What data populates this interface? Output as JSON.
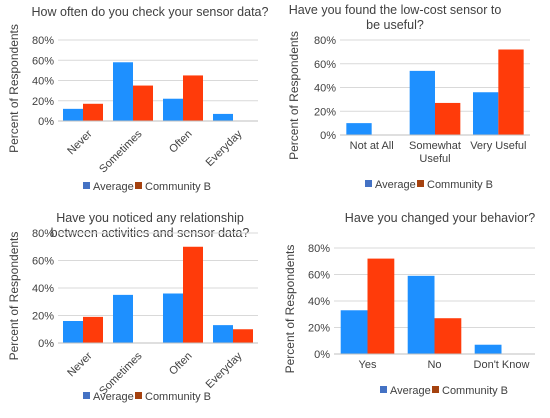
{
  "colors": {
    "average": "#1e90ff",
    "community_b": "#ff3b0a",
    "average_legend": "#4472c4",
    "community_b_legend": "#a5420f",
    "gridline": "#d9d9d9",
    "text": "#404040"
  },
  "chart_data": [
    {
      "type": "bar",
      "title": "How often do you check your sensor data?",
      "ylabel": "Percent of Respondents",
      "xlabel": "",
      "ylim": [
        0,
        80
      ],
      "yticks": [
        "0%",
        "20%",
        "40%",
        "60%",
        "80%"
      ],
      "grid": true,
      "categories": [
        "Never",
        "Sometimes",
        "Often",
        "Everyday"
      ],
      "series": [
        {
          "name": "Average",
          "values": [
            12,
            58,
            22,
            7
          ]
        },
        {
          "name": "Community B",
          "values": [
            17,
            35,
            45,
            0
          ]
        }
      ],
      "legend": "bottom"
    },
    {
      "type": "bar",
      "title": "Have you found the low-cost sensor to be useful?",
      "ylabel": "Percent of Respondents",
      "xlabel": "",
      "ylim": [
        0,
        80
      ],
      "yticks": [
        "0%",
        "20%",
        "40%",
        "60%",
        "80%"
      ],
      "grid": true,
      "categories": [
        "Not at All",
        "Somewhat Useful",
        "Very Useful"
      ],
      "series": [
        {
          "name": "Average",
          "values": [
            10,
            54,
            36
          ]
        },
        {
          "name": "Community B",
          "values": [
            0,
            27,
            72
          ]
        }
      ],
      "legend": "bottom"
    },
    {
      "type": "bar",
      "title": "Have you noticed any relationship between activities and sensor data?",
      "ylabel": "Percent of Respondents",
      "xlabel": "",
      "ylim": [
        0,
        80
      ],
      "yticks": [
        "0%",
        "20%",
        "40%",
        "60%",
        "80%"
      ],
      "grid": true,
      "categories": [
        "Never",
        "Sometimes",
        "Often",
        "Everyday"
      ],
      "series": [
        {
          "name": "Average",
          "values": [
            16,
            35,
            36,
            13
          ]
        },
        {
          "name": "Community B",
          "values": [
            19,
            0,
            70,
            10
          ]
        }
      ],
      "legend": "bottom"
    },
    {
      "type": "bar",
      "title": "Have you changed your behavior?",
      "ylabel": "Percent of Respondents",
      "xlabel": "",
      "ylim": [
        0,
        80
      ],
      "yticks": [
        "0%",
        "20%",
        "40%",
        "60%",
        "80%"
      ],
      "grid": true,
      "categories": [
        "Yes",
        "No",
        "Don't Know"
      ],
      "series": [
        {
          "name": "Average",
          "values": [
            33,
            59,
            7
          ]
        },
        {
          "name": "Community B",
          "values": [
            72,
            27,
            0
          ]
        }
      ],
      "legend": "bottom"
    }
  ]
}
